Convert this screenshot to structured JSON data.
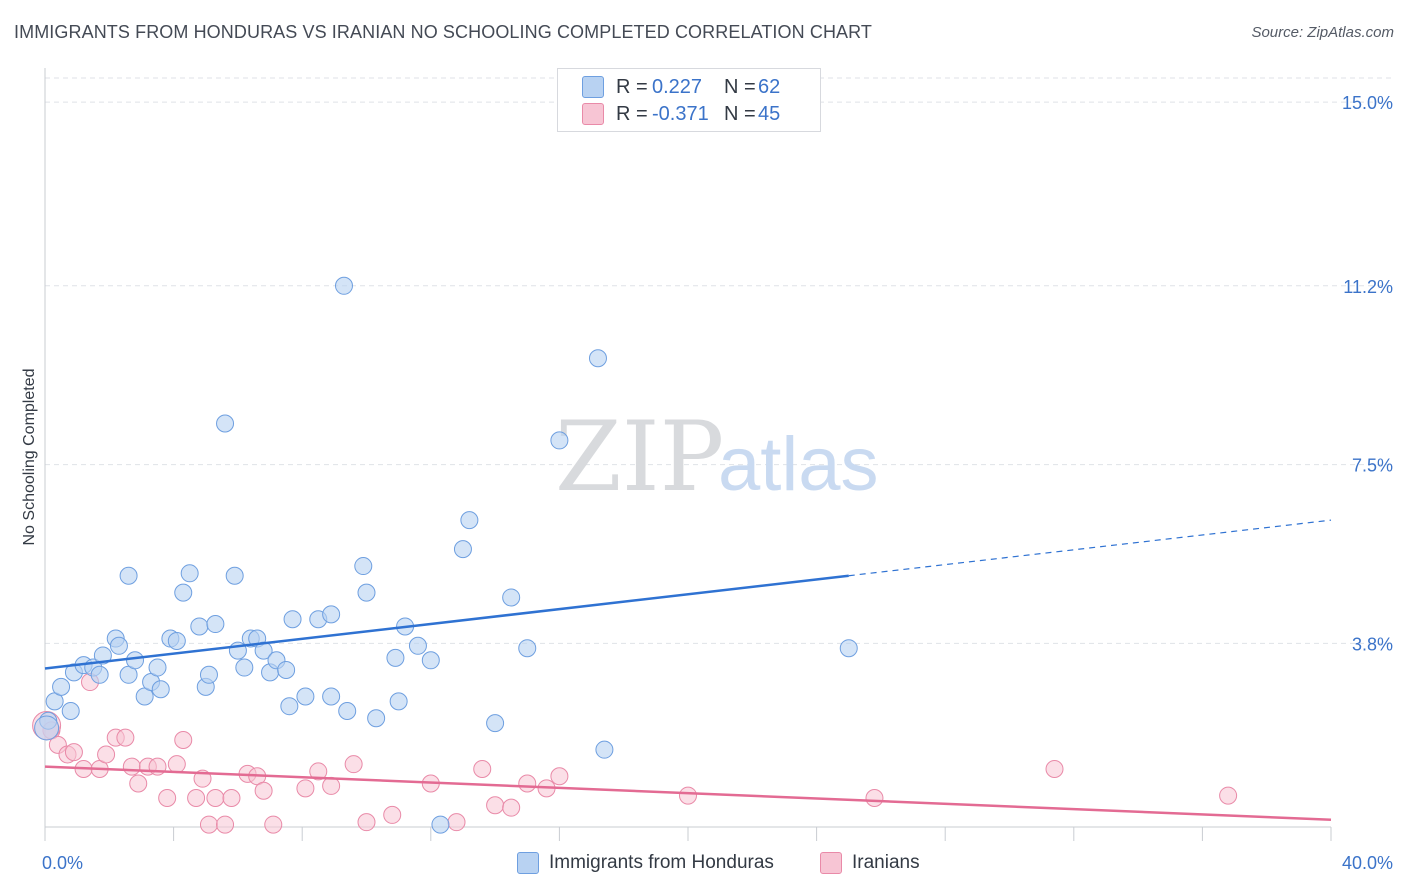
{
  "title": "IMMIGRANTS FROM HONDURAS VS IRANIAN NO SCHOOLING COMPLETED CORRELATION CHART",
  "source": "Source: ZipAtlas.com",
  "watermark": {
    "zip": "ZIP",
    "atlas": "atlas"
  },
  "legend": {
    "series1": {
      "r_label": "R =",
      "r_value": "0.227",
      "n_label": "N =",
      "n_value": "62"
    },
    "series2": {
      "r_label": "R =",
      "r_value": "-0.371",
      "n_label": "N =",
      "n_value": "45"
    }
  },
  "colors": {
    "blue_fill": "#b8d2f2",
    "blue_stroke": "#6e9fe0",
    "blue_line": "#2f72d2",
    "pink_fill": "#f7c5d4",
    "pink_stroke": "#e98aa8",
    "pink_line": "#e36b93",
    "tick_text": "#3b73c9",
    "grid": "#dfe2e7"
  },
  "chart_data": {
    "type": "scatter",
    "title": "IMMIGRANTS FROM HONDURAS VS IRANIAN NO SCHOOLING COMPLETED CORRELATION CHART",
    "xlabel": "",
    "ylabel": "No Schooling Completed",
    "xlim": [
      0,
      40
    ],
    "ylim": [
      0,
      15.5
    ],
    "x_tick_labels": [
      "0.0%",
      "40.0%"
    ],
    "y_ticks": [
      3.8,
      7.5,
      11.2,
      15.0
    ],
    "y_tick_labels": [
      "3.8%",
      "7.5%",
      "11.2%",
      "15.0%"
    ],
    "grid": true,
    "legend_position": "top-center",
    "series": [
      {
        "name": "Immigrants from Honduras",
        "r": 0.227,
        "n": 62,
        "trend": {
          "x0": 0,
          "y0": 3.28,
          "x1": 25,
          "y1": 5.2,
          "dash_to_x": 40,
          "dash_to_y": 6.35
        },
        "points": [
          [
            0.1,
            2.2
          ],
          [
            0.3,
            2.6
          ],
          [
            0.5,
            2.9
          ],
          [
            0.8,
            2.4
          ],
          [
            0.9,
            3.2
          ],
          [
            1.2,
            3.35
          ],
          [
            1.5,
            3.3
          ],
          [
            1.8,
            3.55
          ],
          [
            1.7,
            3.15
          ],
          [
            2.2,
            3.9
          ],
          [
            2.3,
            3.75
          ],
          [
            2.6,
            3.15
          ],
          [
            2.8,
            3.45
          ],
          [
            2.6,
            5.2
          ],
          [
            3.1,
            2.7
          ],
          [
            3.3,
            3.0
          ],
          [
            3.5,
            3.3
          ],
          [
            3.6,
            2.85
          ],
          [
            3.9,
            3.9
          ],
          [
            4.1,
            3.85
          ],
          [
            4.3,
            4.85
          ],
          [
            4.5,
            5.25
          ],
          [
            4.8,
            4.15
          ],
          [
            5.0,
            2.9
          ],
          [
            5.1,
            3.15
          ],
          [
            5.3,
            4.2
          ],
          [
            5.6,
            8.35
          ],
          [
            5.9,
            5.2
          ],
          [
            6.0,
            3.65
          ],
          [
            6.2,
            3.3
          ],
          [
            6.4,
            3.9
          ],
          [
            6.6,
            3.9
          ],
          [
            6.8,
            3.65
          ],
          [
            7.0,
            3.2
          ],
          [
            7.2,
            3.45
          ],
          [
            7.5,
            3.25
          ],
          [
            7.6,
            2.5
          ],
          [
            7.7,
            4.3
          ],
          [
            8.1,
            2.7
          ],
          [
            8.5,
            4.3
          ],
          [
            8.9,
            4.4
          ],
          [
            8.9,
            2.7
          ],
          [
            9.3,
            11.2
          ],
          [
            9.4,
            2.4
          ],
          [
            9.9,
            5.4
          ],
          [
            10.0,
            4.85
          ],
          [
            10.3,
            2.25
          ],
          [
            10.9,
            3.5
          ],
          [
            11.0,
            2.6
          ],
          [
            11.2,
            4.15
          ],
          [
            11.6,
            3.75
          ],
          [
            12.0,
            3.45
          ],
          [
            12.3,
            0.05
          ],
          [
            13.0,
            5.75
          ],
          [
            13.2,
            6.35
          ],
          [
            14.0,
            2.15
          ],
          [
            14.5,
            4.75
          ],
          [
            15.0,
            3.7
          ],
          [
            16.0,
            8.0
          ],
          [
            17.2,
            9.7
          ],
          [
            17.4,
            1.6
          ],
          [
            25.0,
            3.7
          ]
        ]
      },
      {
        "name": "Iranians",
        "r": -0.371,
        "n": 45,
        "trend": {
          "x0": 0,
          "y0": 1.25,
          "x1": 40,
          "y1": 0.15
        },
        "points": [
          [
            0.2,
            2.0
          ],
          [
            0.4,
            1.7
          ],
          [
            0.7,
            1.5
          ],
          [
            0.9,
            1.55
          ],
          [
            1.2,
            1.2
          ],
          [
            1.4,
            3.0
          ],
          [
            1.7,
            1.2
          ],
          [
            1.9,
            1.5
          ],
          [
            2.2,
            1.85
          ],
          [
            2.5,
            1.85
          ],
          [
            2.7,
            1.25
          ],
          [
            2.9,
            0.9
          ],
          [
            3.2,
            1.25
          ],
          [
            3.5,
            1.25
          ],
          [
            3.8,
            0.6
          ],
          [
            4.1,
            1.3
          ],
          [
            4.3,
            1.8
          ],
          [
            4.7,
            0.6
          ],
          [
            4.9,
            1.0
          ],
          [
            5.1,
            0.05
          ],
          [
            5.3,
            0.6
          ],
          [
            5.6,
            0.05
          ],
          [
            5.8,
            0.6
          ],
          [
            6.3,
            1.1
          ],
          [
            6.6,
            1.05
          ],
          [
            6.8,
            0.75
          ],
          [
            7.1,
            0.05
          ],
          [
            8.1,
            0.8
          ],
          [
            8.5,
            1.15
          ],
          [
            8.9,
            0.85
          ],
          [
            9.6,
            1.3
          ],
          [
            10.0,
            0.1
          ],
          [
            10.8,
            0.25
          ],
          [
            12.0,
            0.9
          ],
          [
            12.8,
            0.1
          ],
          [
            13.6,
            1.2
          ],
          [
            14.0,
            0.45
          ],
          [
            14.5,
            0.4
          ],
          [
            15.0,
            0.9
          ],
          [
            15.6,
            0.8
          ],
          [
            16.0,
            1.05
          ],
          [
            20.0,
            0.65
          ],
          [
            25.8,
            0.6
          ],
          [
            31.4,
            1.2
          ],
          [
            36.8,
            0.65
          ]
        ]
      }
    ]
  },
  "bottom_legend": {
    "item1": "Immigrants from Honduras",
    "item2": "Iranians"
  }
}
